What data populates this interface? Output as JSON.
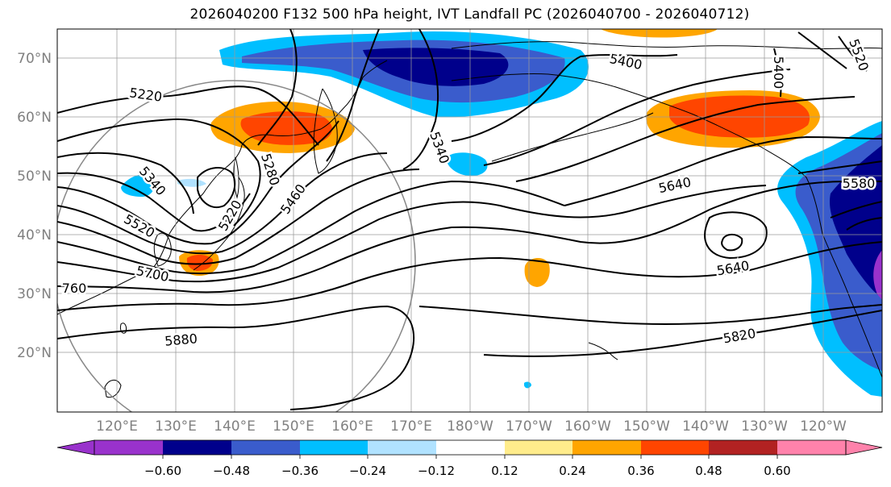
{
  "title": "2026040200 F132 500 hPa height, IVT Landfall PC (2026040700 - 2026040712)",
  "map": {
    "lat_labels": [
      "70°N",
      "60°N",
      "50°N",
      "40°N",
      "30°N",
      "20°N"
    ],
    "lon_labels": [
      "120°E",
      "130°E",
      "140°E",
      "150°E",
      "160°E",
      "170°E",
      "180°W",
      "170°W",
      "160°W",
      "150°W",
      "140°W",
      "130°W",
      "120°W"
    ],
    "contour_labels": [
      "5220",
      "5340",
      "5400",
      "5400",
      "5340",
      "5280",
      "5460",
      "5220",
      "5520",
      "5700",
      "760",
      "5880",
      "5640",
      "5640",
      "5580",
      "5820",
      "5520"
    ]
  },
  "colorbar": {
    "colors": [
      "#9932cc",
      "#00008b",
      "#3a5ccc",
      "#00bfff",
      "#b0e2ff",
      "#ffffff",
      "#ffec8b",
      "#ffa500",
      "#ff4500",
      "#b22222",
      "#ff82ab"
    ],
    "tick_labels": [
      "−0.60",
      "−0.48",
      "−0.36",
      "−0.24",
      "−0.12",
      "0.12",
      "0.24",
      "0.36",
      "0.48",
      "0.60"
    ]
  }
}
